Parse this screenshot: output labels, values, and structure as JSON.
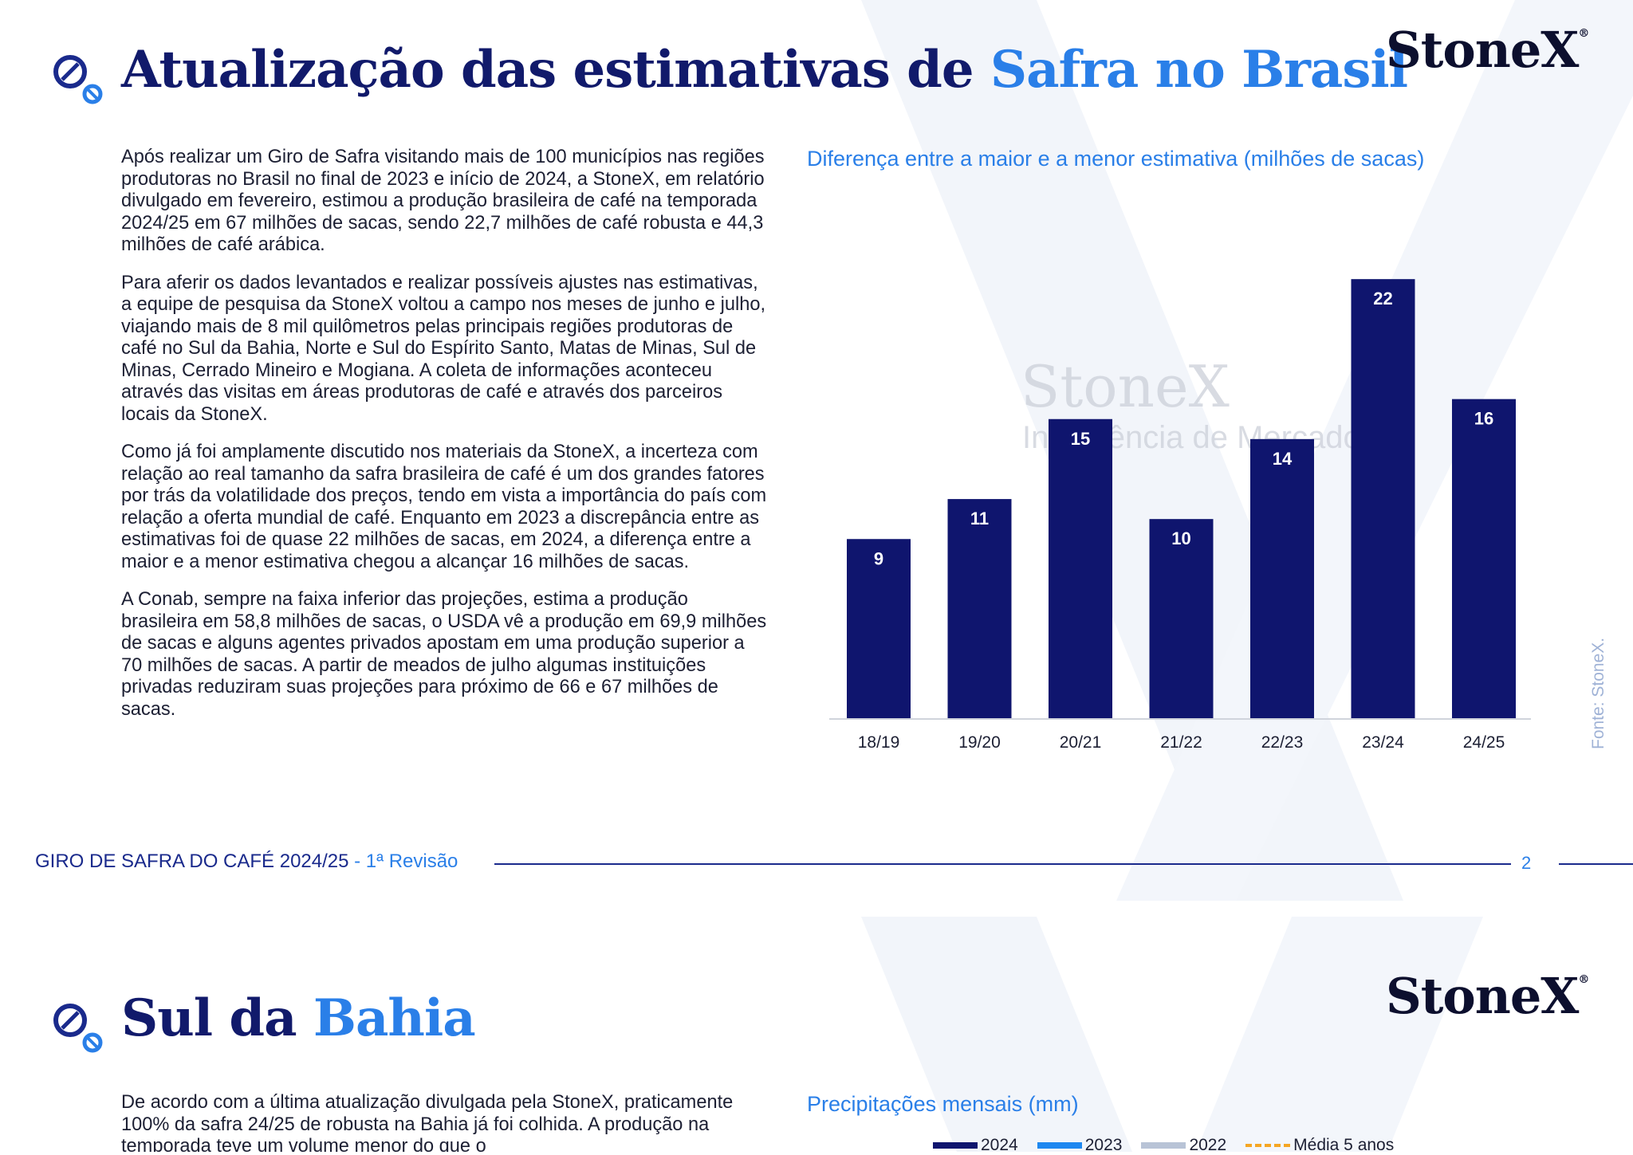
{
  "page1": {
    "title_part1": "Atualização das estimativas de ",
    "title_part2": "Safra no Brasil",
    "logo": "StoneX",
    "paragraphs": [
      "Após realizar um Giro de Safra visitando mais de 100 municípios nas regiões produtoras no Brasil no final de 2023 e início de 2024, a StoneX, em relatório divulgado em fevereiro, estimou a produção brasileira de café na temporada 2024/25 em 67 milhões de sacas, sendo 22,7 milhões de café robusta e 44,3 milhões de café arábica.",
      "Para aferir os dados levantados e realizar possíveis ajustes nas estimativas, a equipe de pesquisa da StoneX voltou a campo nos meses de junho e julho, viajando mais de 8 mil quilômetros pelas principais regiões produtoras de café no Sul da Bahia, Norte e Sul do Espírito Santo, Matas de Minas, Sul de Minas, Cerrado Mineiro e Mogiana. A coleta de informações aconteceu através das visitas em áreas produtoras de café e através dos parceiros locais da StoneX.",
      "Como já foi amplamente discutido nos materiais da StoneX, a incerteza com relação ao real tamanho da safra brasileira de café é um dos grandes fatores por trás da volatilidade dos preços, tendo em vista a importância do país com relação a oferta mundial de café. Enquanto em 2023 a discrepância entre as estimativas foi de quase 22 milhões de sacas, em 2024, a diferença entre a maior e a menor estimativa chegou a alcançar 16 milhões de sacas.",
      "A Conab, sempre na faixa inferior das projeções, estima a produção brasileira em 58,8 milhões de sacas, o USDA vê a produção em 69,9 milhões de sacas e alguns agentes privados apostam em uma produção superior a 70 milhões de sacas. A partir de meados de julho algumas instituições privadas reduziram suas projeções para próximo de 66 e 67 milhões de sacas."
    ],
    "watermark_logo": "StoneX",
    "watermark_sub": "Inteligência de Mercado",
    "source": "Fonte: StoneX.",
    "footer_main": "GIRO DE SAFRA DO CAFÉ 2024/25",
    "footer_sep": " - ",
    "footer_rev": "1ª Revisão",
    "page_number": "2"
  },
  "chart_data": {
    "type": "bar",
    "title": "Diferença entre a maior e a menor estimativa (milhões de sacas)",
    "categories": [
      "18/19",
      "19/20",
      "20/21",
      "21/22",
      "22/23",
      "23/24",
      "24/25"
    ],
    "values": [
      9,
      11,
      15,
      10,
      14,
      22,
      16
    ],
    "ylim": [
      0,
      24
    ],
    "bar_color": "#0f156e",
    "label_color": "#ffffff",
    "grid": false
  },
  "page2": {
    "title_part1": "Sul da ",
    "title_part2": "Bahia",
    "logo": "StoneX",
    "paragraph": "De acordo com a última atualização divulgada pela StoneX, praticamente 100% da safra 24/25 de robusta na Bahia já foi colhida. A produção na temporada teve um volume menor do que o",
    "chart_title": "Precipitações mensais (mm)",
    "legend": [
      {
        "label": "2024",
        "color": "#0f156e",
        "style": "solid"
      },
      {
        "label": "2023",
        "color": "#1e88f0",
        "style": "solid"
      },
      {
        "label": "2022",
        "color": "#b8c3d6",
        "style": "solid"
      },
      {
        "label": "Média 5 anos",
        "color": "#f5a623",
        "style": "dashed"
      }
    ]
  },
  "colors": {
    "navy": "#111a6b",
    "accent": "#2a7fe8"
  },
  "icons": {
    "title_icon": "coffee-bean-icon"
  }
}
